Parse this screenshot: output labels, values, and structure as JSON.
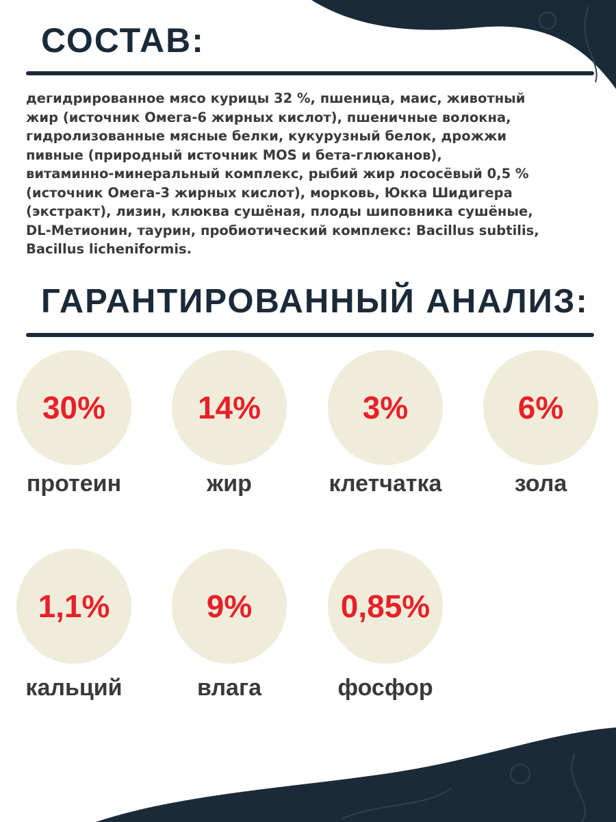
{
  "composition": {
    "title": "СОСТАВ:",
    "lines": [
      "дегидрированное мясо курицы 32 %, пшеница, маис, животный",
      "жир (источник Омега-6 жирных кислот), пшеничные волокна,",
      "гидролизованные мясные белки, кукурузный белок, дрожжи",
      "пивные (природный источник MOS и бета-глюканов),",
      "витаминно-минеральный комплекс, рыбий жир лососёвый 0,5 %",
      "(источник Омега-3 жирных кислот), морковь, Юкка Шидигера",
      "(экстракт), лизин, клюква сушёная, плоды шиповника сушёные,",
      "DL-Метионин, таурин, пробиотический комплекс: Bacillus subtilis,",
      "Bacillus licheniformis."
    ]
  },
  "analysis": {
    "title": "ГАРАНТИРОВАННЫЙ АНАЛИЗ:",
    "items": [
      {
        "value": "30%",
        "label": "протеин"
      },
      {
        "value": "14%",
        "label": "жир"
      },
      {
        "value": "3%",
        "label": "клетчатка"
      },
      {
        "value": "6%",
        "label": "зола"
      },
      {
        "value": "1,1%",
        "label": "кальций"
      },
      {
        "value": "9%",
        "label": "влага"
      },
      {
        "value": "0,85%",
        "label": "фосфор"
      }
    ]
  }
}
